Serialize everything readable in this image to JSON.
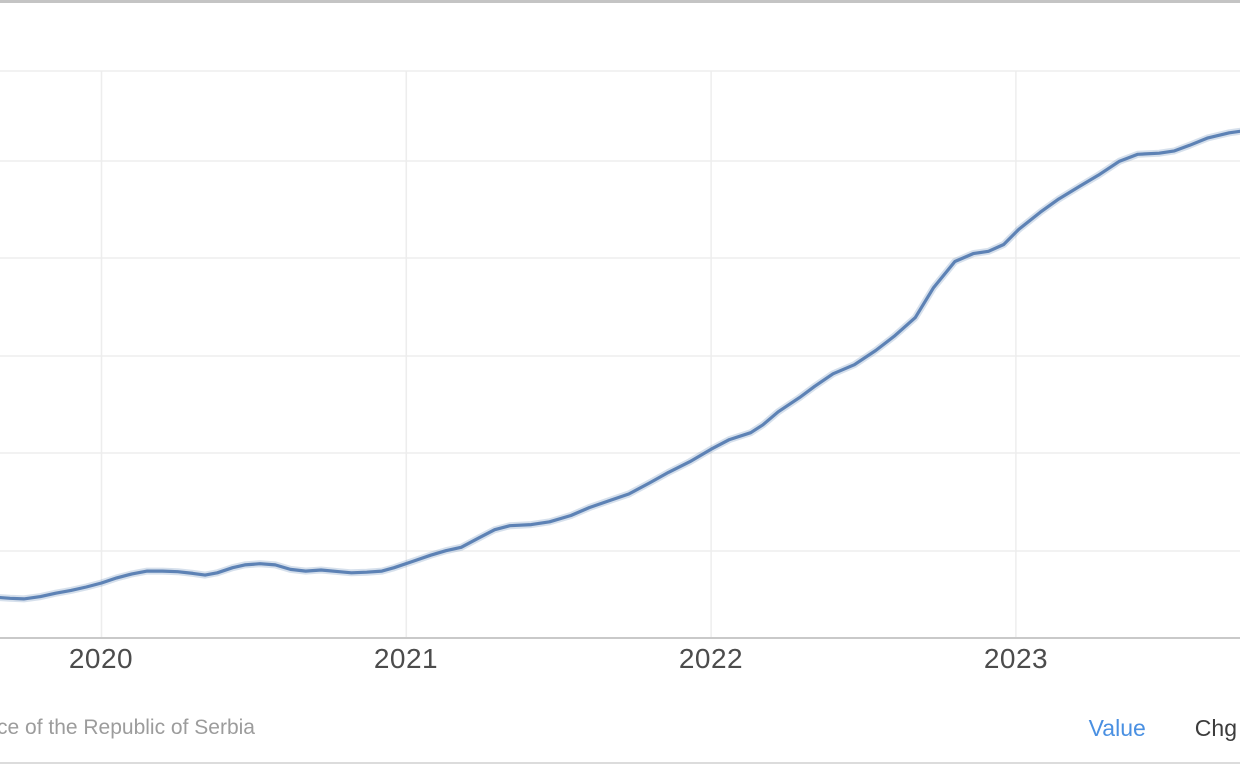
{
  "chart": {
    "x_axis": {
      "tick_labels": [
        "2020",
        "2021",
        "2022",
        "2023"
      ],
      "tick_years": [
        2020,
        2021,
        2022,
        2023
      ]
    },
    "y_axis": {
      "labels_visible": false,
      "note": "y-axis tick labels are cropped out of the visible screenshot; 5 unlabeled horizontal gridlines"
    }
  },
  "chart_data": {
    "type": "line",
    "title": "",
    "xlabel": "",
    "ylabel": "",
    "x_range": [
      2019.65,
      2023.74
    ],
    "grid": true,
    "legend_position": "none",
    "y_unit": "percent of visible plot height (axis values cropped off-screen)",
    "series": [
      {
        "name": "Value",
        "color": "#5d82b5",
        "points": [
          [
            2019.65,
            7.2
          ],
          [
            2019.7,
            7.0
          ],
          [
            2019.745,
            6.9
          ],
          [
            2019.8,
            7.3
          ],
          [
            2019.85,
            7.9
          ],
          [
            2019.9,
            8.4
          ],
          [
            2019.95,
            9.0
          ],
          [
            2020.0,
            9.7
          ],
          [
            2020.05,
            10.6
          ],
          [
            2020.1,
            11.3
          ],
          [
            2020.15,
            11.8
          ],
          [
            2020.2,
            11.8
          ],
          [
            2020.25,
            11.7
          ],
          [
            2020.3,
            11.4
          ],
          [
            2020.34,
            11.1
          ],
          [
            2020.38,
            11.5
          ],
          [
            2020.43,
            12.4
          ],
          [
            2020.47,
            12.9
          ],
          [
            2020.52,
            13.1
          ],
          [
            2020.57,
            12.9
          ],
          [
            2020.62,
            12.1
          ],
          [
            2020.67,
            11.8
          ],
          [
            2020.72,
            12.0
          ],
          [
            2020.78,
            11.7
          ],
          [
            2020.82,
            11.5
          ],
          [
            2020.87,
            11.6
          ],
          [
            2020.92,
            11.8
          ],
          [
            2020.96,
            12.4
          ],
          [
            2021.02,
            13.5
          ],
          [
            2021.08,
            14.6
          ],
          [
            2021.13,
            15.4
          ],
          [
            2021.18,
            16.0
          ],
          [
            2021.24,
            17.7
          ],
          [
            2021.29,
            19.1
          ],
          [
            2021.34,
            19.8
          ],
          [
            2021.41,
            20.0
          ],
          [
            2021.47,
            20.5
          ],
          [
            2021.54,
            21.6
          ],
          [
            2021.6,
            23.0
          ],
          [
            2021.67,
            24.3
          ],
          [
            2021.73,
            25.4
          ],
          [
            2021.8,
            27.4
          ],
          [
            2021.86,
            29.2
          ],
          [
            2021.93,
            31.1
          ],
          [
            2022.0,
            33.3
          ],
          [
            2022.06,
            35.0
          ],
          [
            2022.13,
            36.2
          ],
          [
            2022.17,
            37.6
          ],
          [
            2022.22,
            39.9
          ],
          [
            2022.29,
            42.4
          ],
          [
            2022.34,
            44.4
          ],
          [
            2022.4,
            46.6
          ],
          [
            2022.47,
            48.2
          ],
          [
            2022.54,
            50.7
          ],
          [
            2022.6,
            53.2
          ],
          [
            2022.67,
            56.5
          ],
          [
            2022.73,
            61.8
          ],
          [
            2022.8,
            66.4
          ],
          [
            2022.86,
            67.8
          ],
          [
            2022.91,
            68.2
          ],
          [
            2022.96,
            69.4
          ],
          [
            2023.01,
            72.1
          ],
          [
            2023.08,
            75.1
          ],
          [
            2023.14,
            77.4
          ],
          [
            2023.21,
            79.7
          ],
          [
            2023.27,
            81.6
          ],
          [
            2023.34,
            84.1
          ],
          [
            2023.4,
            85.3
          ],
          [
            2023.47,
            85.5
          ],
          [
            2023.52,
            85.9
          ],
          [
            2023.57,
            86.9
          ],
          [
            2023.63,
            88.2
          ],
          [
            2023.7,
            89.1
          ],
          [
            2023.74,
            89.4
          ]
        ]
      }
    ]
  },
  "footer": {
    "source_text": "ce of the Republic of Serbia",
    "value_label": "Value",
    "chg_label": "Chg"
  },
  "colors": {
    "line": "#5d82b5",
    "line_halo": "rgba(93,130,181,0.25)",
    "gridline": "#ededed",
    "axis_line": "#c9c9c9",
    "tick_label": "#4c4c4c",
    "source_text": "#9c9c9c",
    "value_active": "#4a90e2",
    "chg_inactive": "#3c3c3c"
  }
}
